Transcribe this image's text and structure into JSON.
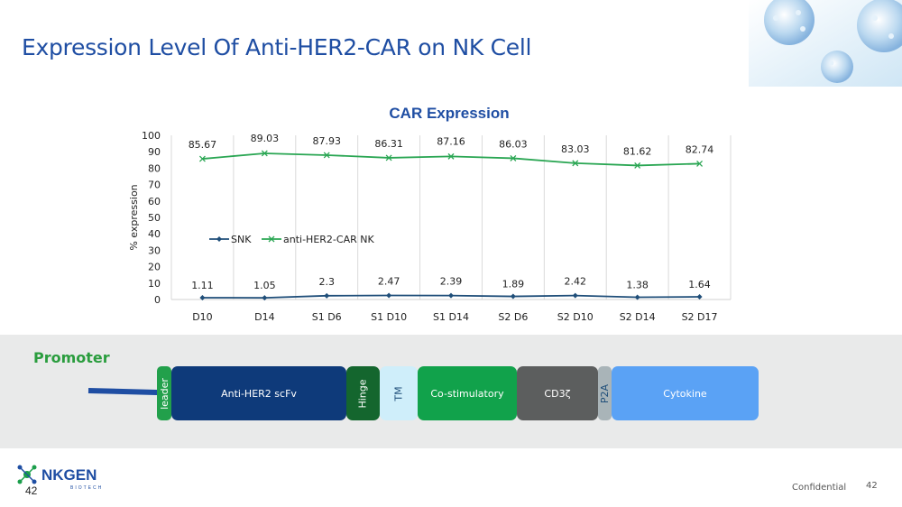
{
  "slide": {
    "title": "Expression Level Of Anti-HER2-CAR on NK Cell",
    "confidential": "Confidential",
    "page_number": "42",
    "page_number_left": "42",
    "logo_text": "NKGEN",
    "logo_subtext": "BIOTECH"
  },
  "chart_data": {
    "type": "line",
    "title": "CAR Expression",
    "xlabel": "",
    "ylabel": "% expression",
    "ylim": [
      0,
      100
    ],
    "yticks": [
      0,
      10,
      20,
      30,
      40,
      50,
      60,
      70,
      80,
      90,
      100
    ],
    "categories": [
      "D10",
      "D14",
      "S1 D6",
      "S1 D10",
      "S1 D14",
      "S2 D6",
      "S2 D10",
      "S2 D14",
      "S2 D17"
    ],
    "grid": "vertical",
    "legend_position": "center-left",
    "series": [
      {
        "name": "SNK",
        "color": "#1f4e79",
        "marker": "diamond",
        "values": [
          1.11,
          1.05,
          2.3,
          2.47,
          2.39,
          1.89,
          2.42,
          1.38,
          1.64
        ]
      },
      {
        "name": "anti-HER2-CAR NK",
        "color": "#2aa653",
        "marker": "x",
        "values": [
          85.67,
          89.03,
          87.93,
          86.31,
          87.16,
          86.03,
          83.03,
          81.62,
          82.74
        ]
      }
    ]
  },
  "construct": {
    "promoter_label": "Promoter",
    "segments": [
      {
        "label": "leader",
        "color": "#22a04b"
      },
      {
        "label": "Anti-HER2 scFv",
        "color": "#0e3a7a"
      },
      {
        "label": "Hinge",
        "color": "#14662e"
      },
      {
        "label": "TM",
        "color": "#cfeefa"
      },
      {
        "label": "Co-stimulatory",
        "color": "#11a24b"
      },
      {
        "label": "CD3ζ",
        "color": "#5c5e5e"
      },
      {
        "label": "P2A",
        "color": "#a9b4b8"
      },
      {
        "label": "Cytokine",
        "color": "#5aa2f5"
      }
    ]
  }
}
